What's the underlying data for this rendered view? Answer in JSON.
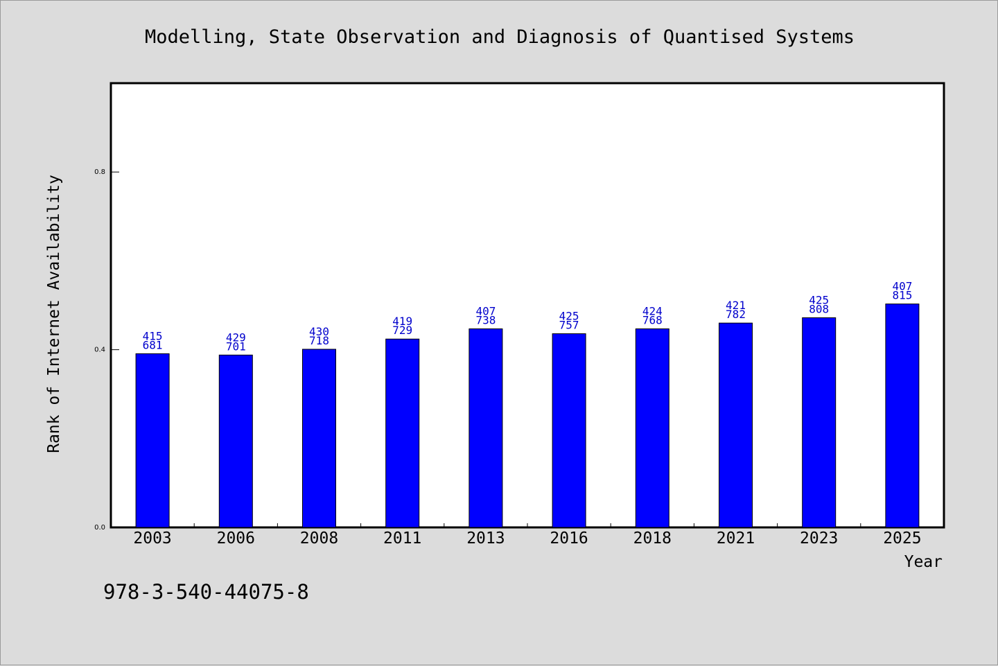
{
  "chart_data": {
    "type": "bar",
    "title": "Modelling, State Observation and Diagnosis of Quantised Systems",
    "xlabel": "Year",
    "ylabel": "Rank of Internet Availability",
    "categories": [
      "2003",
      "2006",
      "2008",
      "2011",
      "2013",
      "2016",
      "2018",
      "2021",
      "2023",
      "2025"
    ],
    "values": [
      0.391,
      0.388,
      0.401,
      0.424,
      0.447,
      0.436,
      0.447,
      0.46,
      0.472,
      0.503
    ],
    "data_labels": [
      [
        "415",
        "681"
      ],
      [
        "429",
        "701"
      ],
      [
        "430",
        "718"
      ],
      [
        "419",
        "729"
      ],
      [
        "407",
        "738"
      ],
      [
        "425",
        "757"
      ],
      [
        "424",
        "768"
      ],
      [
        "421",
        "782"
      ],
      [
        "425",
        "808"
      ],
      [
        "407",
        "815"
      ]
    ],
    "yticks": [
      {
        "value": 0.0,
        "label": "0.0"
      },
      {
        "value": 0.4,
        "label": "0.4"
      },
      {
        "value": 0.8,
        "label": "0.8"
      }
    ],
    "ylim": [
      0,
      1.0
    ],
    "grid": false,
    "legend": "none",
    "bar_color": "#0000ff",
    "label_color": "#0000cc"
  },
  "footer_text": "978-3-540-44075-8"
}
